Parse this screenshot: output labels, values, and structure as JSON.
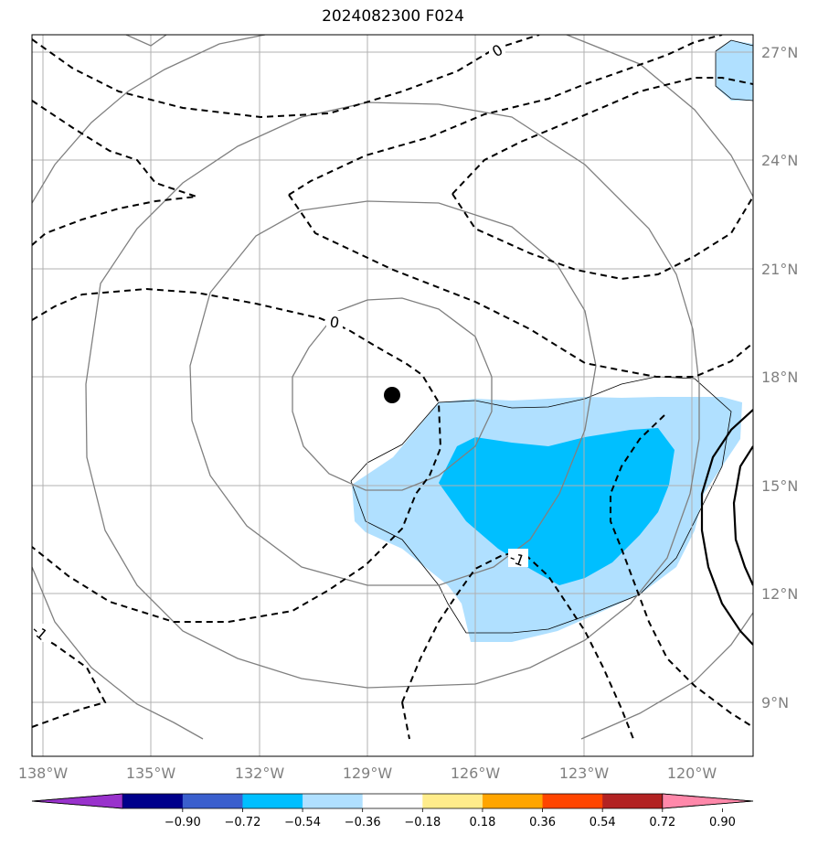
{
  "title": "2024082300 F024",
  "map": {
    "lon_ticks": [
      "138°W",
      "135°W",
      "132°W",
      "129°W",
      "126°W",
      "123°W",
      "120°W"
    ],
    "lat_ticks": [
      "27°N",
      "24°N",
      "21°N",
      "18°N",
      "15°N",
      "12°N",
      "9°N"
    ],
    "contour_labels": [
      "0",
      "0",
      "-1",
      "-1"
    ],
    "colors": {
      "shade_light": "#b0e0ff",
      "shade_dark": "#00bfff",
      "grid": "#b0b0b0",
      "height_contour": "#808080"
    },
    "icons": [
      "storm-center-icon"
    ]
  },
  "colorbar": {
    "colors": [
      "#9932cc",
      "#00008b",
      "#3a5fcd",
      "#00bfff",
      "#b0e0ff",
      "#ffffff",
      "#ffec8b",
      "#ffa500",
      "#ff4500",
      "#b22222",
      "#ff88aa"
    ],
    "labels": [
      "−0.90",
      "−0.72",
      "−0.54",
      "−0.36",
      "−0.18",
      "0.18",
      "0.36",
      "0.54",
      "0.72",
      "0.90"
    ]
  }
}
